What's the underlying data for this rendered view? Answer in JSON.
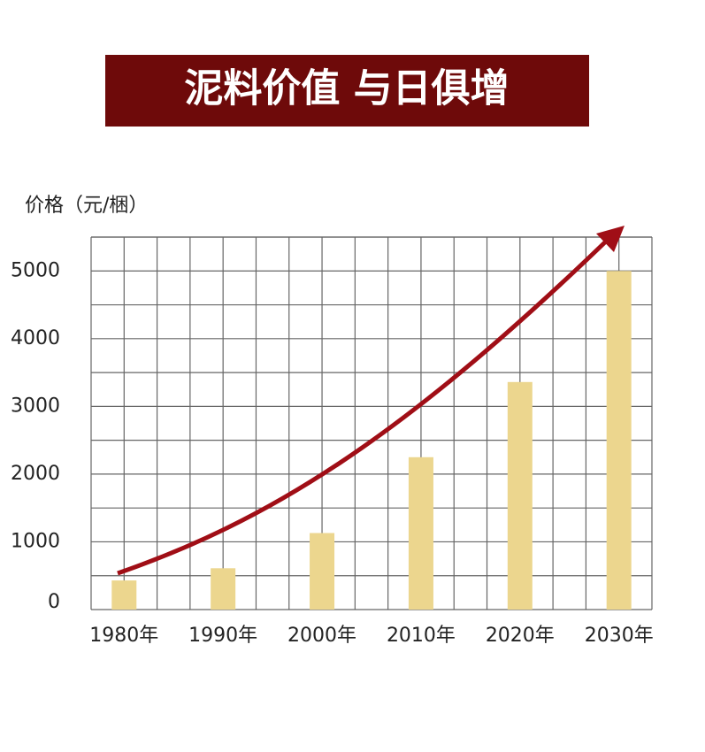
{
  "chart_data": {
    "type": "bar",
    "title": "泥料价值 与日俱增",
    "y_label": "价格（元/梱）",
    "categories": [
      "1980年",
      "1990年",
      "2000年",
      "2010年",
      "2020年",
      "2030年"
    ],
    "values": [
      430,
      610,
      1130,
      2250,
      3360,
      5000
    ],
    "color": "#ecd68e",
    "ylim": [
      0,
      5500
    ],
    "yticks": [
      0,
      1000,
      2000,
      3000,
      4000,
      5000
    ],
    "grid": true
  }
}
